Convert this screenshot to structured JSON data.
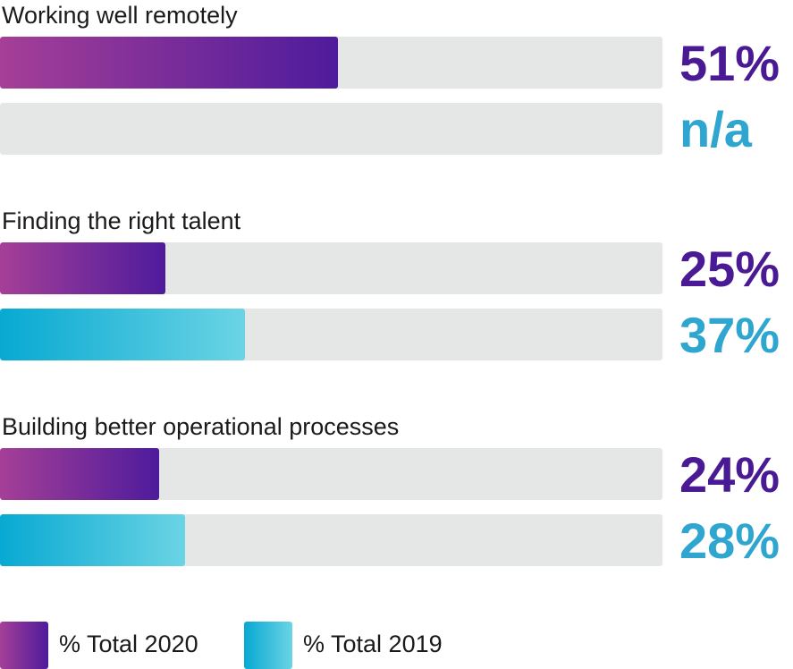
{
  "chart_data": {
    "type": "bar",
    "orientation": "horizontal",
    "categories": [
      "Working well remotely",
      "Finding the right talent",
      "Building better operational processes"
    ],
    "series": [
      {
        "name": "% Total 2020",
        "values": [
          51,
          25,
          24
        ],
        "labels": [
          "51%",
          "25%",
          "24%"
        ],
        "color": "#4e1b9c",
        "gradient": [
          "#a53f97",
          "#4e1b9c"
        ]
      },
      {
        "name": "% Total 2019",
        "values": [
          null,
          37,
          28
        ],
        "labels": [
          "n/a",
          "37%",
          "28%"
        ],
        "color": "#2ea6cf",
        "gradient": [
          "#07a9d2",
          "#6bd4e4"
        ]
      }
    ],
    "xlim": [
      0,
      100
    ],
    "track_color": "#e5e6e6",
    "grid": false,
    "legend_position": "bottom-left"
  }
}
